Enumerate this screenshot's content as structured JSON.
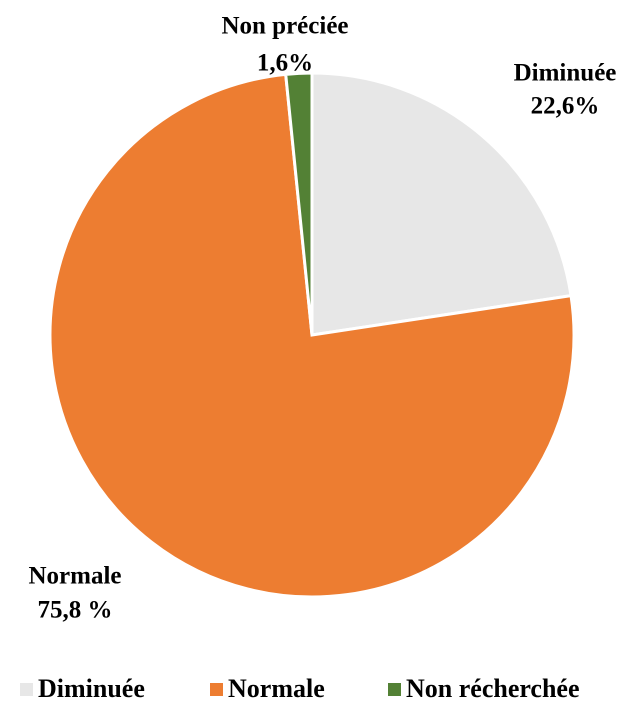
{
  "chart_data": {
    "type": "pie",
    "categories": [
      "Diminuée",
      "Normale",
      "Non préciée"
    ],
    "values": [
      22.6,
      75.8,
      1.6
    ],
    "value_labels": [
      "22,6%",
      "75,8 %",
      "1,6%"
    ],
    "colors": [
      "#e7e7e7",
      "#ed7d31",
      "#538135"
    ],
    "legend": [
      "Diminuée",
      "Normale",
      "Non récherchée"
    ],
    "legend_position": "bottom"
  }
}
